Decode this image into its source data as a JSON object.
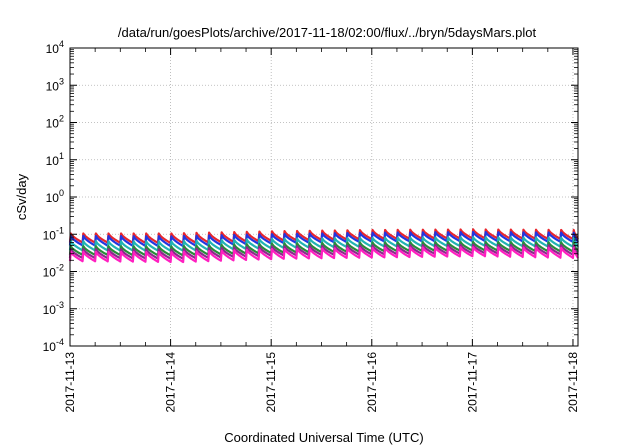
{
  "chart_data": {
    "type": "line",
    "title": "/data/run/goesPlots/archive/2017-11-18/02:00/flux/../bryn/5daysMars.plot",
    "xlabel": "Coordinated Universal Time (UTC)",
    "ylabel": "cSv/day",
    "x_ticks": [
      "2017-11-13",
      "2017-11-14",
      "2017-11-15",
      "2017-11-16",
      "2017-11-17",
      "2017-11-18"
    ],
    "x_range_days": [
      0,
      5.05
    ],
    "y_scale": "log",
    "ylim": [
      0.0001,
      10000
    ],
    "y_ticks": [
      {
        "base": "10",
        "exp": "-4"
      },
      {
        "base": "10",
        "exp": "-3"
      },
      {
        "base": "10",
        "exp": "-2"
      },
      {
        "base": "10",
        "exp": "-1"
      },
      {
        "base": "10",
        "exp": "0"
      },
      {
        "base": "10",
        "exp": "1"
      },
      {
        "base": "10",
        "exp": "2"
      },
      {
        "base": "10",
        "exp": "3"
      },
      {
        "base": "10",
        "exp": "4"
      }
    ],
    "grid": true,
    "cycle_period_days": 0.125,
    "series": [
      {
        "color": "#e8262d",
        "peak": [
          0.105,
          0.105,
          0.12,
          0.13,
          0.135,
          0.13
        ],
        "trough": [
          0.06,
          0.058,
          0.068,
          0.075,
          0.078,
          0.074
        ]
      },
      {
        "color": "#2335e0",
        "peak": [
          0.09,
          0.088,
          0.1,
          0.11,
          0.115,
          0.11
        ],
        "trough": [
          0.05,
          0.048,
          0.058,
          0.064,
          0.066,
          0.062
        ]
      },
      {
        "color": "#22b3b3",
        "peak": [
          0.065,
          0.064,
          0.075,
          0.08,
          0.083,
          0.08
        ],
        "trough": [
          0.037,
          0.036,
          0.043,
          0.047,
          0.049,
          0.046
        ]
      },
      {
        "color": "#2a8a3a",
        "peak": [
          0.048,
          0.047,
          0.056,
          0.06,
          0.062,
          0.06
        ],
        "trough": [
          0.028,
          0.027,
          0.032,
          0.035,
          0.037,
          0.034
        ]
      },
      {
        "color": "#8b2a8b",
        "peak": [
          0.04,
          0.039,
          0.047,
          0.05,
          0.052,
          0.05
        ],
        "trough": [
          0.023,
          0.022,
          0.027,
          0.029,
          0.031,
          0.028
        ]
      },
      {
        "color": "#ff1fc0",
        "peak": [
          0.034,
          0.033,
          0.04,
          0.043,
          0.045,
          0.043
        ],
        "trough": [
          0.019,
          0.018,
          0.022,
          0.024,
          0.026,
          0.023
        ]
      }
    ]
  }
}
